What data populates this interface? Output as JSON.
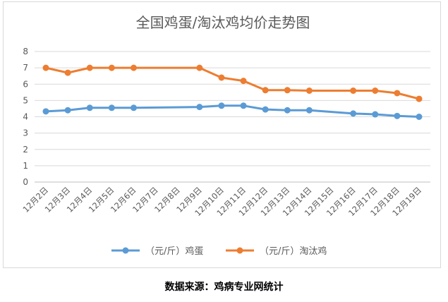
{
  "chart_data": {
    "type": "line",
    "title": "全国鸡蛋/淘汰鸡均价走势图",
    "xlabel": "",
    "ylabel": "",
    "categories": [
      "12月2日",
      "12月3日",
      "12月4日",
      "12月5日",
      "12月6日",
      "12月7日",
      "12月8日",
      "12月9日",
      "12月10日",
      "12月11日",
      "12月12日",
      "12月13日",
      "12月14日",
      "12月15日",
      "12月16日",
      "12月17日",
      "12月18日",
      "12月19日"
    ],
    "y_ticks": [
      "0",
      "1",
      "2",
      "3",
      "4",
      "5",
      "6",
      "7",
      "8"
    ],
    "ylim": [
      0,
      8
    ],
    "grid": true,
    "legend_position": "bottom",
    "series": [
      {
        "name": "（元/斤）鸡蛋",
        "color": "#5b9bd5",
        "values": [
          4.33,
          4.4,
          4.55,
          4.55,
          4.55,
          null,
          null,
          4.6,
          4.68,
          4.68,
          4.45,
          4.4,
          4.4,
          null,
          4.2,
          4.15,
          4.05,
          4.0
        ]
      },
      {
        "name": "（元/斤）淘汰鸡",
        "color": "#ed7d31",
        "values": [
          7.0,
          6.7,
          7.0,
          7.0,
          7.0,
          null,
          null,
          7.0,
          6.4,
          6.2,
          5.63,
          5.63,
          5.6,
          null,
          5.6,
          5.6,
          5.45,
          5.1
        ]
      }
    ]
  },
  "source": "数据来源：鸡病专业网统计"
}
